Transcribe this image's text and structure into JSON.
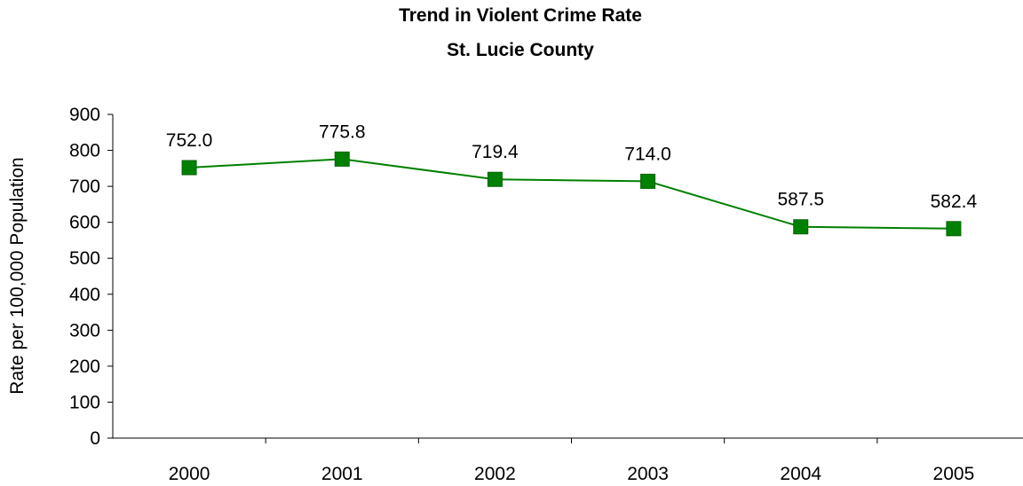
{
  "chart_data": {
    "type": "line",
    "title": "Trend in Violent Crime Rate",
    "subtitle": "St. Lucie County",
    "ylabel": "Rate per 100,000 Population",
    "xlabel": "",
    "categories": [
      "2000",
      "2001",
      "2002",
      "2003",
      "2004",
      "2005"
    ],
    "values": [
      752.0,
      775.8,
      719.4,
      714.0,
      587.5,
      582.4
    ],
    "data_labels": [
      "752.0",
      "775.8",
      "719.4",
      "714.0",
      "587.5",
      "582.4"
    ],
    "ylim": [
      0,
      900
    ],
    "yticks": [
      0,
      100,
      200,
      300,
      400,
      500,
      600,
      700,
      800,
      900
    ],
    "grid": false,
    "legend": "none",
    "line_color": "#008000",
    "marker": "square"
  }
}
